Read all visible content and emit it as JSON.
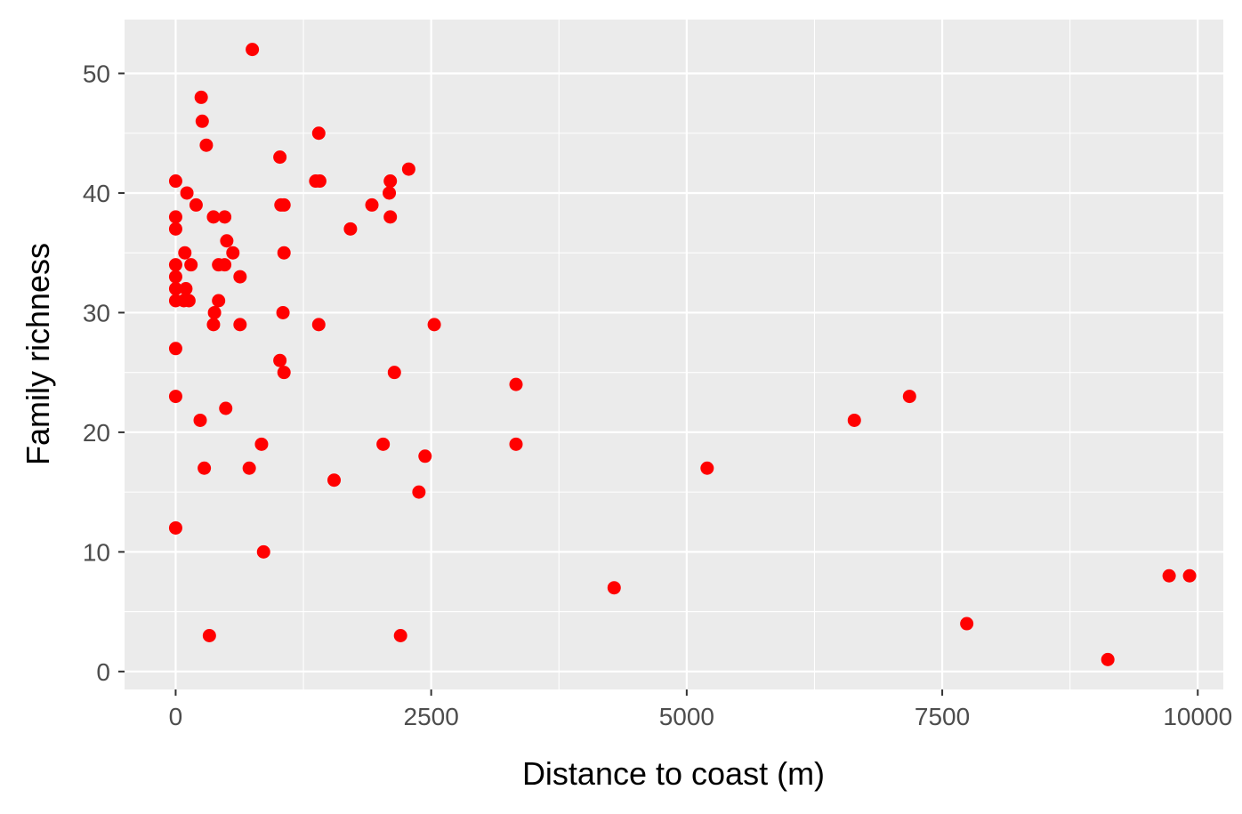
{
  "chart_data": {
    "type": "scatter",
    "xlabel": "Distance to coast (m)",
    "ylabel": "Family richness",
    "xlim": [
      -500,
      10250
    ],
    "ylim": [
      -1.5,
      54.5
    ],
    "x_ticks": [
      0,
      2500,
      5000,
      7500,
      10000
    ],
    "x_tick_labels": [
      "0",
      "2500",
      "5000",
      "7500",
      "10000"
    ],
    "y_ticks": [
      0,
      10,
      20,
      30,
      40,
      50
    ],
    "y_tick_labels": [
      "0",
      "10",
      "20",
      "30",
      "40",
      "50"
    ],
    "grid": true,
    "point_color": "#ff0000",
    "panel_background": "#ebebeb",
    "grid_color": "#ffffff",
    "points": [
      {
        "x": 0,
        "y": 41
      },
      {
        "x": 0,
        "y": 38
      },
      {
        "x": 0,
        "y": 37
      },
      {
        "x": 0,
        "y": 34
      },
      {
        "x": 0,
        "y": 33
      },
      {
        "x": 0,
        "y": 32
      },
      {
        "x": 0,
        "y": 31
      },
      {
        "x": 0,
        "y": 27
      },
      {
        "x": 0,
        "y": 23
      },
      {
        "x": 0,
        "y": 12
      },
      {
        "x": 80,
        "y": 31
      },
      {
        "x": 90,
        "y": 35
      },
      {
        "x": 100,
        "y": 32
      },
      {
        "x": 110,
        "y": 40
      },
      {
        "x": 130,
        "y": 31
      },
      {
        "x": 150,
        "y": 34
      },
      {
        "x": 200,
        "y": 39
      },
      {
        "x": 240,
        "y": 21
      },
      {
        "x": 250,
        "y": 48
      },
      {
        "x": 260,
        "y": 46
      },
      {
        "x": 280,
        "y": 17
      },
      {
        "x": 300,
        "y": 44
      },
      {
        "x": 330,
        "y": 3
      },
      {
        "x": 370,
        "y": 38
      },
      {
        "x": 370,
        "y": 29
      },
      {
        "x": 380,
        "y": 30
      },
      {
        "x": 420,
        "y": 31
      },
      {
        "x": 420,
        "y": 34
      },
      {
        "x": 480,
        "y": 34
      },
      {
        "x": 480,
        "y": 38
      },
      {
        "x": 490,
        "y": 22
      },
      {
        "x": 500,
        "y": 36
      },
      {
        "x": 560,
        "y": 35
      },
      {
        "x": 630,
        "y": 33
      },
      {
        "x": 630,
        "y": 29
      },
      {
        "x": 720,
        "y": 17
      },
      {
        "x": 750,
        "y": 52
      },
      {
        "x": 840,
        "y": 19
      },
      {
        "x": 860,
        "y": 10
      },
      {
        "x": 1020,
        "y": 43
      },
      {
        "x": 1020,
        "y": 26
      },
      {
        "x": 1030,
        "y": 39
      },
      {
        "x": 1050,
        "y": 30
      },
      {
        "x": 1060,
        "y": 39
      },
      {
        "x": 1060,
        "y": 35
      },
      {
        "x": 1060,
        "y": 25
      },
      {
        "x": 1370,
        "y": 41
      },
      {
        "x": 1400,
        "y": 45
      },
      {
        "x": 1400,
        "y": 29
      },
      {
        "x": 1410,
        "y": 41
      },
      {
        "x": 1550,
        "y": 16
      },
      {
        "x": 1710,
        "y": 37
      },
      {
        "x": 1920,
        "y": 39
      },
      {
        "x": 2030,
        "y": 19
      },
      {
        "x": 2090,
        "y": 40
      },
      {
        "x": 2100,
        "y": 41
      },
      {
        "x": 2100,
        "y": 38
      },
      {
        "x": 2140,
        "y": 25
      },
      {
        "x": 2200,
        "y": 3
      },
      {
        "x": 2280,
        "y": 42
      },
      {
        "x": 2380,
        "y": 15
      },
      {
        "x": 2440,
        "y": 18
      },
      {
        "x": 2530,
        "y": 29
      },
      {
        "x": 3330,
        "y": 24
      },
      {
        "x": 3330,
        "y": 19
      },
      {
        "x": 4290,
        "y": 7
      },
      {
        "x": 5200,
        "y": 17
      },
      {
        "x": 6640,
        "y": 21
      },
      {
        "x": 7180,
        "y": 23
      },
      {
        "x": 7740,
        "y": 4
      },
      {
        "x": 9120,
        "y": 1
      },
      {
        "x": 9720,
        "y": 8
      },
      {
        "x": 9920,
        "y": 8
      }
    ]
  }
}
